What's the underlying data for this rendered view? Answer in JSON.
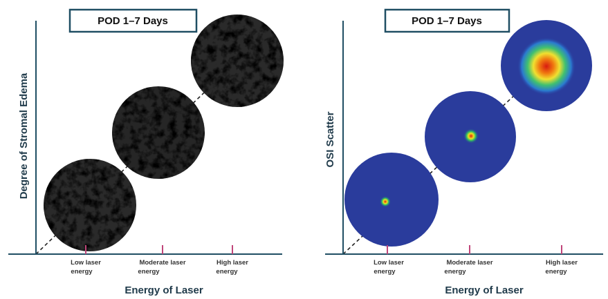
{
  "panels": [
    {
      "title": "POD 1–7 Days",
      "y_label": "Degree of Stromal Edema",
      "x_label": "Energy of Laser",
      "ticks": [
        [
          "Low laser",
          "energy"
        ],
        [
          "Moderate laser",
          "energy"
        ],
        [
          "High laser",
          "energy"
        ]
      ]
    },
    {
      "title": "POD 1–7 Days",
      "y_label": "OSI Scatter",
      "x_label": "Energy of Laser",
      "ticks": [
        [
          "Low laser",
          "energy"
        ],
        [
          "Moderate laser",
          "energy"
        ],
        [
          "High laser",
          "energy"
        ]
      ]
    }
  ]
}
